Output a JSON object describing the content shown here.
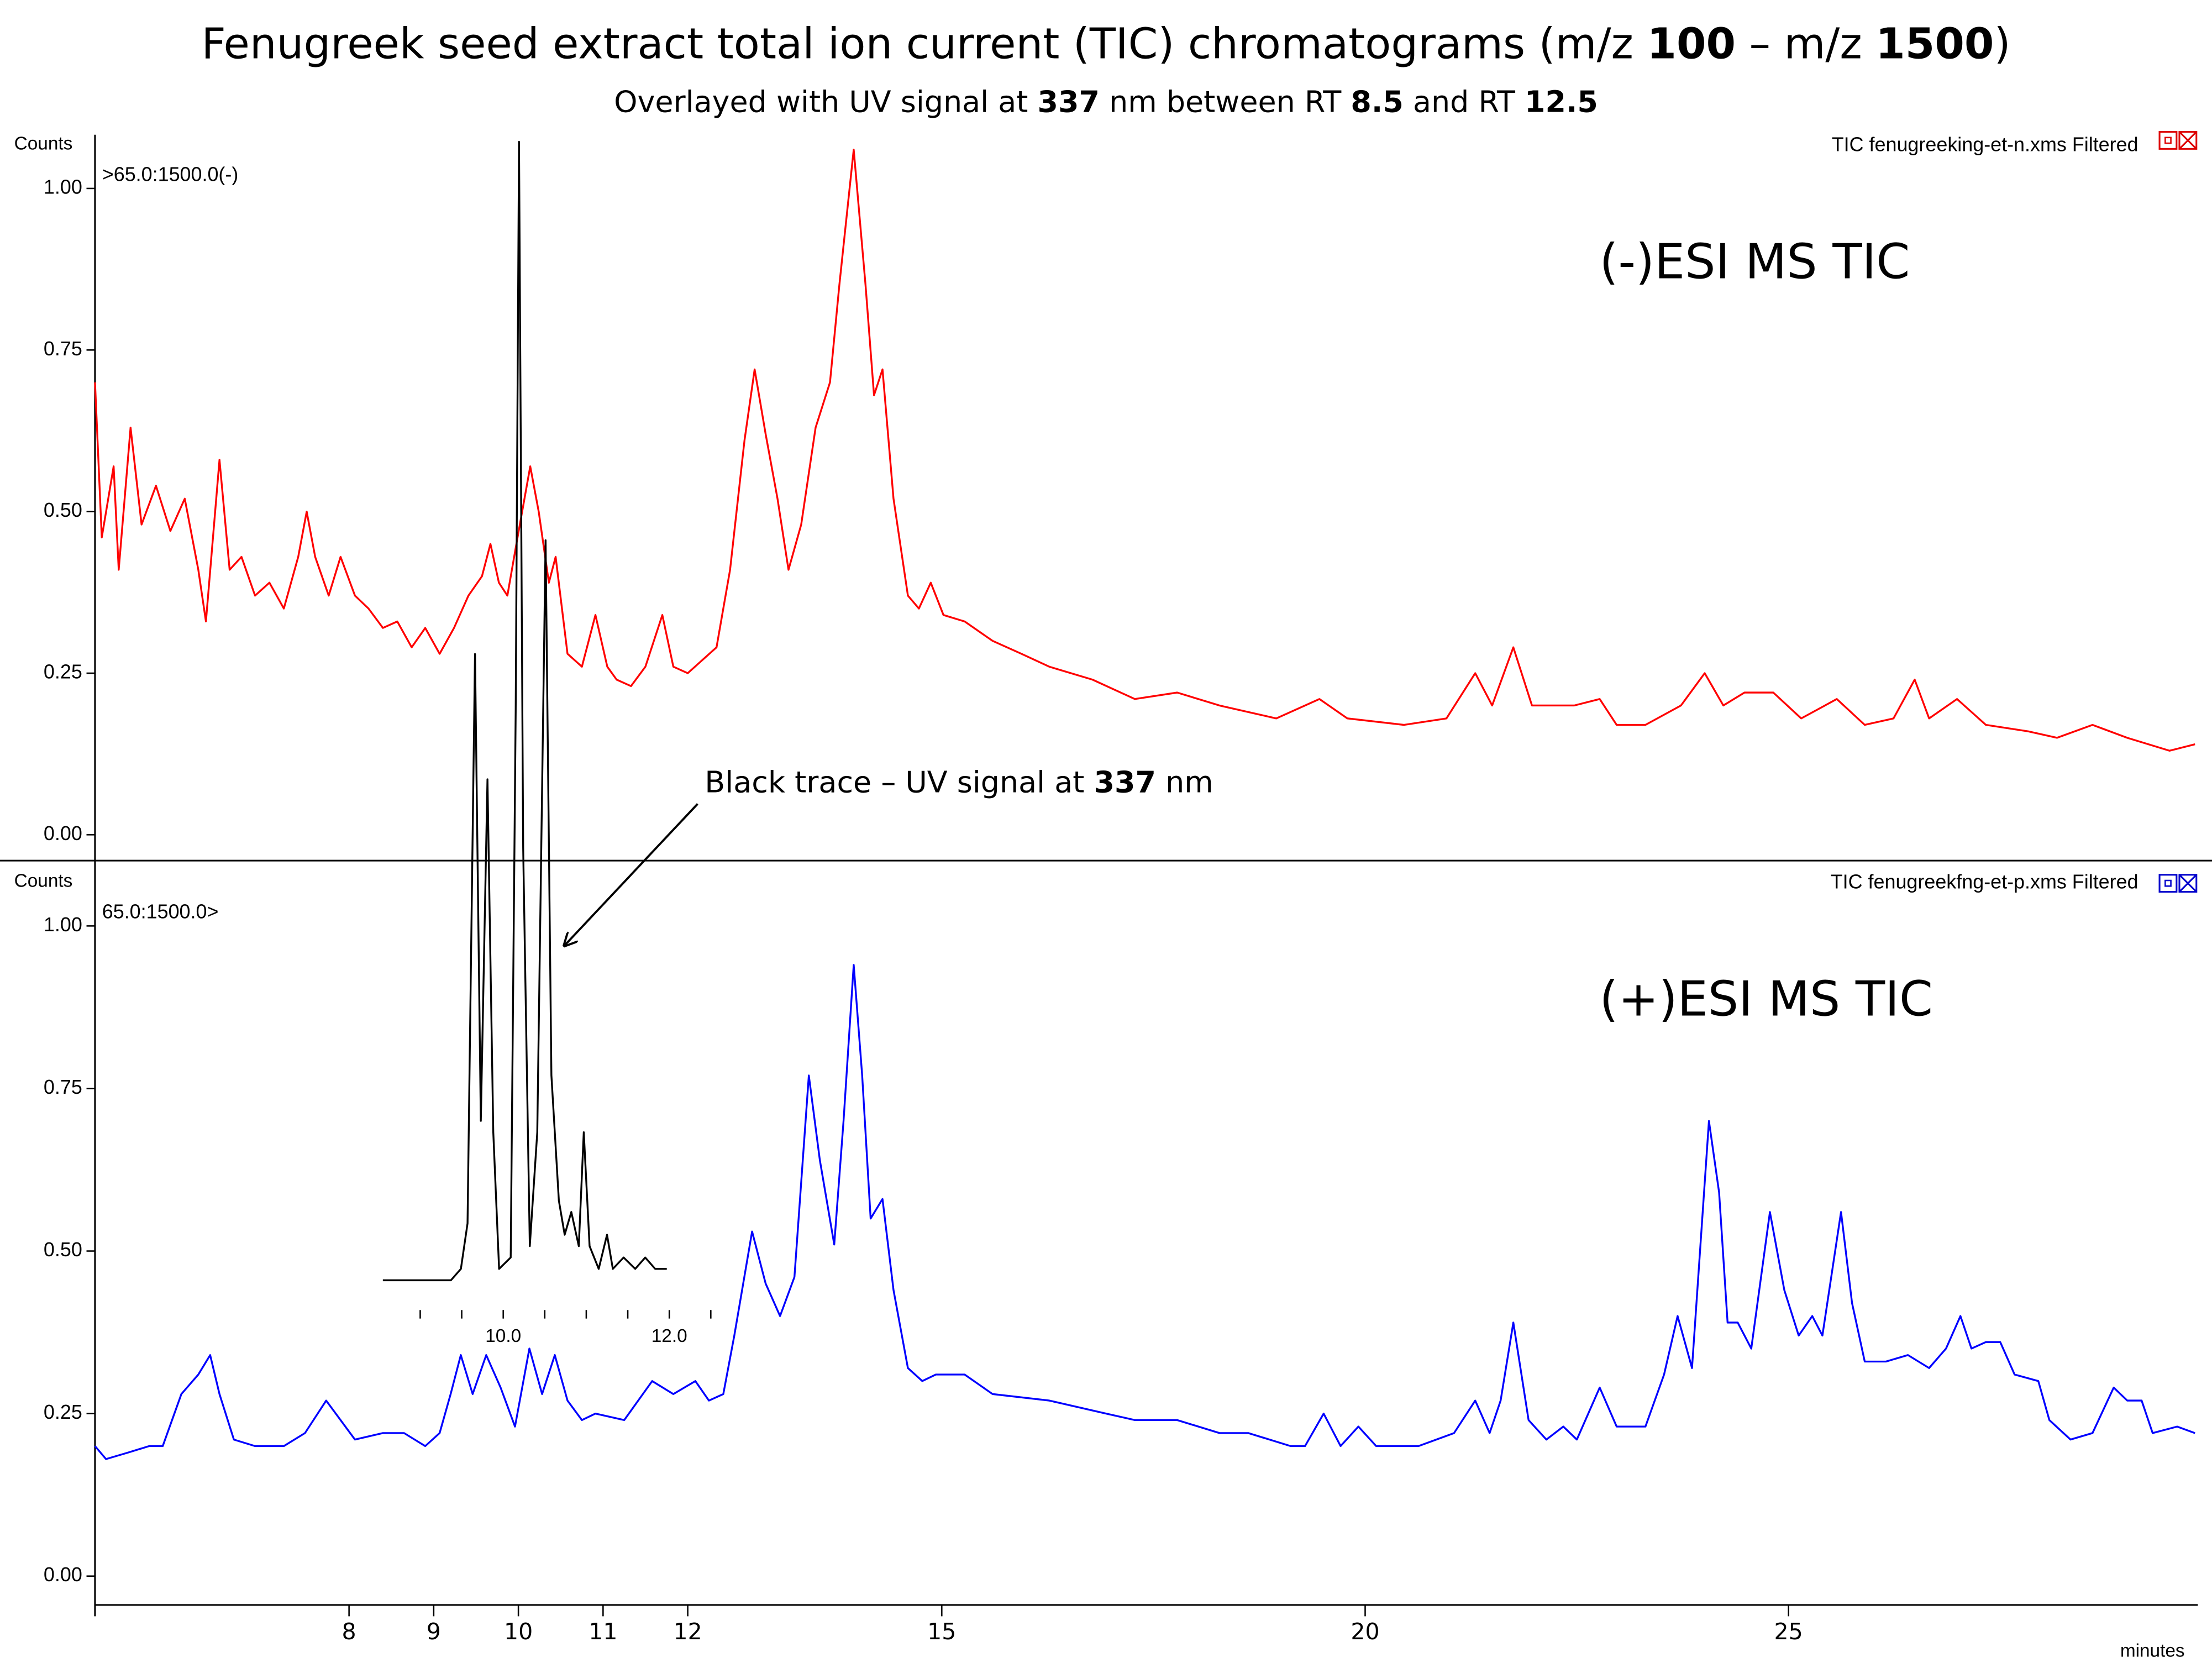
{
  "chart_data": [
    {
      "type": "line",
      "title": [
        "Fenugreek seed extract total ion current (TIC) chromatograms (m/z ",
        "100",
        " – m/z ",
        "1500",
        ")"
      ],
      "subtitle": [
        "Overlayed with UV signal at ",
        "337",
        " nm between RT ",
        "8.5",
        " and RT ",
        "12.5"
      ],
      "y_label": "Counts",
      "trace_label": ">65.0:1500.0(-)",
      "annotation": "(-)ESI MS TIC",
      "xlim": [
        5,
        29.8
      ],
      "ylim": [
        -0.04,
        1.07
      ],
      "yticks": [
        {
          "value": 0,
          "label": "0.00"
        },
        {
          "value": 0.25,
          "label": "0.25"
        },
        {
          "value": 0.5,
          "label": "0.50"
        },
        {
          "value": 0.75,
          "label": "0.75"
        },
        {
          "value": 1,
          "label": "1.00"
        }
      ],
      "series": [
        {
          "name": "TIC fenugreeking-et-n.xms Filtered",
          "color": "#ff0000",
          "x": [
            5.0,
            5.08,
            5.22,
            5.28,
            5.42,
            5.55,
            5.72,
            5.89,
            6.06,
            6.22,
            6.31,
            6.47,
            6.59,
            6.73,
            6.89,
            7.06,
            7.23,
            7.4,
            7.5,
            7.6,
            7.76,
            7.9,
            8.07,
            8.23,
            8.4,
            8.57,
            8.74,
            8.9,
            9.07,
            9.24,
            9.41,
            9.57,
            9.67,
            9.77,
            9.87,
            9.99,
            10.14,
            10.24,
            10.36,
            10.44,
            10.58,
            10.75,
            10.91,
            11.05,
            11.16,
            11.33,
            11.5,
            11.7,
            11.83,
            12.0,
            12.17,
            12.34,
            12.5,
            12.67,
            12.79,
            12.92,
            13.06,
            13.19,
            13.34,
            13.51,
            13.68,
            13.79,
            13.96,
            14.1,
            14.2,
            14.3,
            14.43,
            14.6,
            14.73,
            14.87,
            15.02,
            15.27,
            15.6,
            15.94,
            16.27,
            16.78,
            17.28,
            17.78,
            18.28,
            18.95,
            19.46,
            19.79,
            20.46,
            20.96,
            21.3,
            21.5,
            21.75,
            21.97,
            22.47,
            22.77,
            22.97,
            23.31,
            23.73,
            24.01,
            24.23,
            24.48,
            24.82,
            25.15,
            25.57,
            25.9,
            26.24,
            26.49,
            26.66,
            26.99,
            27.33,
            27.83,
            28.17,
            28.59,
            29.0,
            29.5,
            29.8
          ],
          "values": [
            0.7,
            0.46,
            0.57,
            0.41,
            0.63,
            0.48,
            0.54,
            0.47,
            0.52,
            0.41,
            0.33,
            0.58,
            0.41,
            0.43,
            0.37,
            0.39,
            0.35,
            0.43,
            0.5,
            0.43,
            0.37,
            0.43,
            0.37,
            0.35,
            0.32,
            0.33,
            0.29,
            0.32,
            0.28,
            0.32,
            0.37,
            0.4,
            0.45,
            0.39,
            0.37,
            0.46,
            0.57,
            0.5,
            0.39,
            0.43,
            0.28,
            0.26,
            0.34,
            0.26,
            0.24,
            0.23,
            0.26,
            0.34,
            0.26,
            0.25,
            0.27,
            0.29,
            0.41,
            0.61,
            0.72,
            0.62,
            0.52,
            0.41,
            0.48,
            0.63,
            0.7,
            0.85,
            1.06,
            0.85,
            0.68,
            0.72,
            0.52,
            0.37,
            0.35,
            0.39,
            0.34,
            0.33,
            0.3,
            0.28,
            0.26,
            0.24,
            0.21,
            0.22,
            0.2,
            0.18,
            0.21,
            0.18,
            0.17,
            0.18,
            0.25,
            0.2,
            0.29,
            0.2,
            0.2,
            0.21,
            0.17,
            0.17,
            0.2,
            0.25,
            0.2,
            0.22,
            0.22,
            0.18,
            0.21,
            0.17,
            0.18,
            0.24,
            0.18,
            0.21,
            0.17,
            0.16,
            0.15,
            0.17,
            0.15,
            0.13,
            0.14
          ]
        }
      ]
    },
    {
      "type": "line",
      "y_label": "Counts",
      "trace_label": "65.0:1500.0>",
      "annotation": "(+)ESI MS TIC",
      "x_label": "minutes",
      "xlim": [
        5,
        29.8
      ],
      "ylim": [
        -0.04,
        1.07
      ],
      "xticks": [
        8,
        9,
        10,
        11,
        12,
        15,
        20,
        25
      ],
      "yticks": [
        {
          "value": 0,
          "label": "0.00"
        },
        {
          "value": 0.25,
          "label": "0.25"
        },
        {
          "value": 0.5,
          "label": "0.50"
        },
        {
          "value": 0.75,
          "label": "0.75"
        },
        {
          "value": 1,
          "label": "1.00"
        }
      ],
      "series": [
        {
          "name": "TIC fenugreekfng-et-p.xms Filtered",
          "color": "#0000ff",
          "x": [
            5.0,
            5.13,
            5.39,
            5.64,
            5.8,
            6.02,
            6.22,
            6.36,
            6.47,
            6.64,
            6.89,
            7.23,
            7.48,
            7.73,
            7.9,
            8.07,
            8.4,
            8.65,
            8.9,
            9.07,
            9.2,
            9.32,
            9.46,
            9.62,
            9.79,
            9.96,
            10.13,
            10.28,
            10.43,
            10.58,
            10.75,
            10.91,
            11.25,
            11.58,
            11.83,
            12.09,
            12.25,
            12.42,
            12.55,
            12.76,
            12.92,
            13.09,
            13.26,
            13.43,
            13.56,
            13.73,
            13.84,
            13.96,
            14.06,
            14.16,
            14.3,
            14.43,
            14.6,
            14.77,
            14.93,
            15.27,
            15.6,
            16.27,
            16.94,
            17.28,
            17.78,
            18.28,
            18.62,
            19.12,
            19.29,
            19.51,
            19.71,
            19.92,
            20.13,
            20.63,
            21.05,
            21.3,
            21.47,
            21.6,
            21.75,
            21.93,
            22.14,
            22.34,
            22.5,
            22.77,
            22.97,
            23.31,
            23.53,
            23.69,
            23.86,
            24.06,
            24.18,
            24.28,
            24.4,
            24.56,
            24.78,
            24.95,
            25.12,
            25.28,
            25.4,
            25.62,
            25.75,
            25.9,
            26.15,
            26.41,
            26.66,
            26.86,
            27.03,
            27.16,
            27.33,
            27.5,
            27.67,
            27.95,
            28.08,
            28.33,
            28.59,
            28.84,
            29.0,
            29.17,
            29.3,
            29.59,
            29.8
          ],
          "values": [
            0.2,
            0.18,
            0.19,
            0.2,
            0.2,
            0.28,
            0.31,
            0.34,
            0.28,
            0.21,
            0.2,
            0.2,
            0.22,
            0.27,
            0.24,
            0.21,
            0.22,
            0.22,
            0.2,
            0.22,
            0.28,
            0.34,
            0.28,
            0.34,
            0.29,
            0.23,
            0.35,
            0.28,
            0.34,
            0.27,
            0.24,
            0.25,
            0.24,
            0.3,
            0.28,
            0.3,
            0.27,
            0.28,
            0.37,
            0.53,
            0.45,
            0.4,
            0.46,
            0.77,
            0.64,
            0.51,
            0.7,
            0.94,
            0.77,
            0.55,
            0.58,
            0.44,
            0.32,
            0.3,
            0.31,
            0.31,
            0.28,
            0.27,
            0.25,
            0.24,
            0.24,
            0.22,
            0.22,
            0.2,
            0.2,
            0.25,
            0.2,
            0.23,
            0.2,
            0.2,
            0.22,
            0.27,
            0.22,
            0.27,
            0.39,
            0.24,
            0.21,
            0.23,
            0.21,
            0.29,
            0.23,
            0.23,
            0.31,
            0.4,
            0.32,
            0.7,
            0.59,
            0.39,
            0.39,
            0.35,
            0.56,
            0.44,
            0.37,
            0.4,
            0.37,
            0.56,
            0.42,
            0.33,
            0.33,
            0.34,
            0.32,
            0.35,
            0.4,
            0.35,
            0.36,
            0.36,
            0.31,
            0.3,
            0.24,
            0.21,
            0.22,
            0.29,
            0.27,
            0.27,
            0.22,
            0.23,
            0.22
          ]
        }
      ]
    },
    {
      "type": "line",
      "annotation": [
        "Black trace – UV signal at ",
        "337",
        " nm"
      ],
      "xlim": [
        8.55,
        12.7
      ],
      "ylim": [
        0,
        1
      ],
      "xticks": [
        {
          "value": 10,
          "label": "10.0"
        },
        {
          "value": 12,
          "label": "12.0"
        }
      ],
      "minor_xticks": [
        9,
        9.5,
        10.5,
        11,
        11.5,
        12.5
      ],
      "series": [
        {
          "color": "#000000",
          "x": [
            8.55,
            8.94,
            9.37,
            9.49,
            9.57,
            9.66,
            9.73,
            9.81,
            9.88,
            9.95,
            10.09,
            10.15,
            10.19,
            10.24,
            10.32,
            10.41,
            10.51,
            10.58,
            10.67,
            10.74,
            10.82,
            10.91,
            10.97,
            11.04,
            11.15,
            11.25,
            11.32,
            11.45,
            11.59,
            11.71,
            11.83,
            11.97
          ],
          "values": [
            0.0,
            0.0,
            0.0,
            0.01,
            0.05,
            0.55,
            0.14,
            0.44,
            0.13,
            0.01,
            0.02,
            0.5,
            1.0,
            0.38,
            0.03,
            0.13,
            0.65,
            0.18,
            0.07,
            0.04,
            0.06,
            0.03,
            0.13,
            0.03,
            0.01,
            0.04,
            0.01,
            0.02,
            0.01,
            0.02,
            0.01,
            0.01
          ]
        }
      ]
    }
  ]
}
